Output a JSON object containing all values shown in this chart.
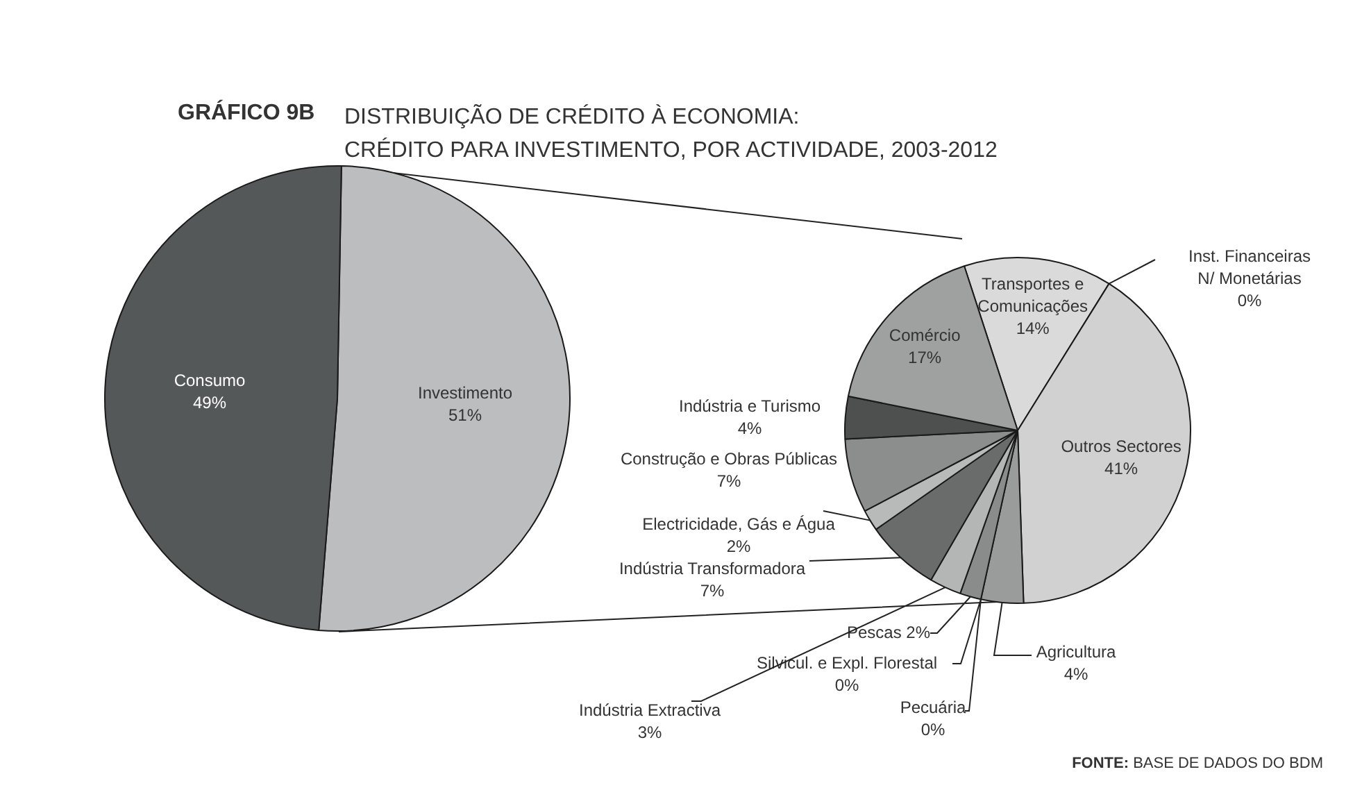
{
  "chart_data": [
    {
      "type": "pie",
      "title": "GRÁFICO 9B",
      "subtitle": "DISTRIBUIÇÃO DE CRÉDITO À ECONOMIA:\nCRÉDITO PARA INVESTIMENTO, POR ACTIVIDADE, 2003-2012",
      "categories": [
        "Investimento",
        "Consumo"
      ],
      "values": [
        51,
        49
      ],
      "value_labels": [
        "51%",
        "49%"
      ],
      "colors": [
        "#bcbdbe",
        "#555858"
      ]
    },
    {
      "type": "pie",
      "categories": [
        "Transportes e Comunicações",
        "Inst. Financeiras N/ Monetárias",
        "Outros Sectores",
        "Agricultura",
        "Pecuária",
        "Silvicul. e Expl. Florestal",
        "Pescas",
        "Indústria Extractiva",
        "Indústria Transformadora",
        "Electricidade, Gás e Água",
        "Construção e Obras Públicas",
        "Indústria e Turismo",
        "Comércio"
      ],
      "values": [
        14,
        0,
        41,
        4,
        0,
        0,
        2,
        3,
        7,
        2,
        7,
        4,
        17
      ],
      "value_labels": [
        "14%",
        "0%",
        "41%",
        "4%",
        "0%",
        "0%",
        "2%",
        "3%",
        "7%",
        "2%",
        "7%",
        "4%",
        "17%"
      ],
      "colors": [
        "#d9dad9",
        "#bfc0c0",
        "#d0d1d0",
        "#9a9c9c",
        "#555858",
        "#777979",
        "#8a8c8c",
        "#b4b5b5",
        "#6a6c6c",
        "#b8b9b9",
        "#8c8e8e",
        "#4e5050",
        "#9fa1a1"
      ],
      "annotations": [
        "FONTE: BASE DE DADOS DO BDM"
      ]
    }
  ]
}
